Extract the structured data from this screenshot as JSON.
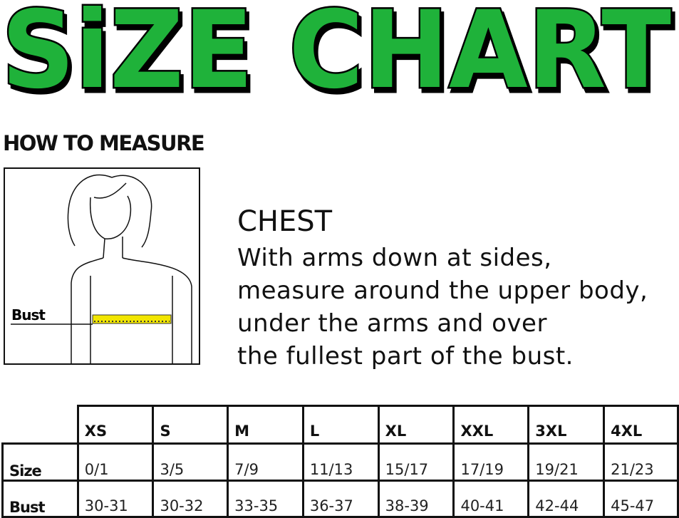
{
  "title": "SiZE CHART",
  "colors": {
    "title_fill": "#1fb23a",
    "title_outline": "#000000",
    "measure_tape": "#f2e600"
  },
  "how_to_measure": "HOW TO MEASURE",
  "illustration": {
    "label": "Bust"
  },
  "chest": {
    "heading": "CHEST",
    "lines": [
      "With arms down at sides,",
      "measure around the upper body,",
      "under the arms and over",
      "the fullest part of the bust."
    ]
  },
  "table": {
    "columns": [
      "XS",
      "S",
      "M",
      "L",
      "XL",
      "XXL",
      "3XL",
      "4XL"
    ],
    "rows": [
      {
        "label": "Size",
        "values": [
          "0/1",
          "3/5",
          "7/9",
          "11/13",
          "15/17",
          "17/19",
          "19/21",
          "21/23"
        ]
      },
      {
        "label": "Bust",
        "values": [
          "30-31",
          "30-32",
          "33-35",
          "36-37",
          "38-39",
          "40-41",
          "42-44",
          "45-47"
        ]
      }
    ]
  }
}
